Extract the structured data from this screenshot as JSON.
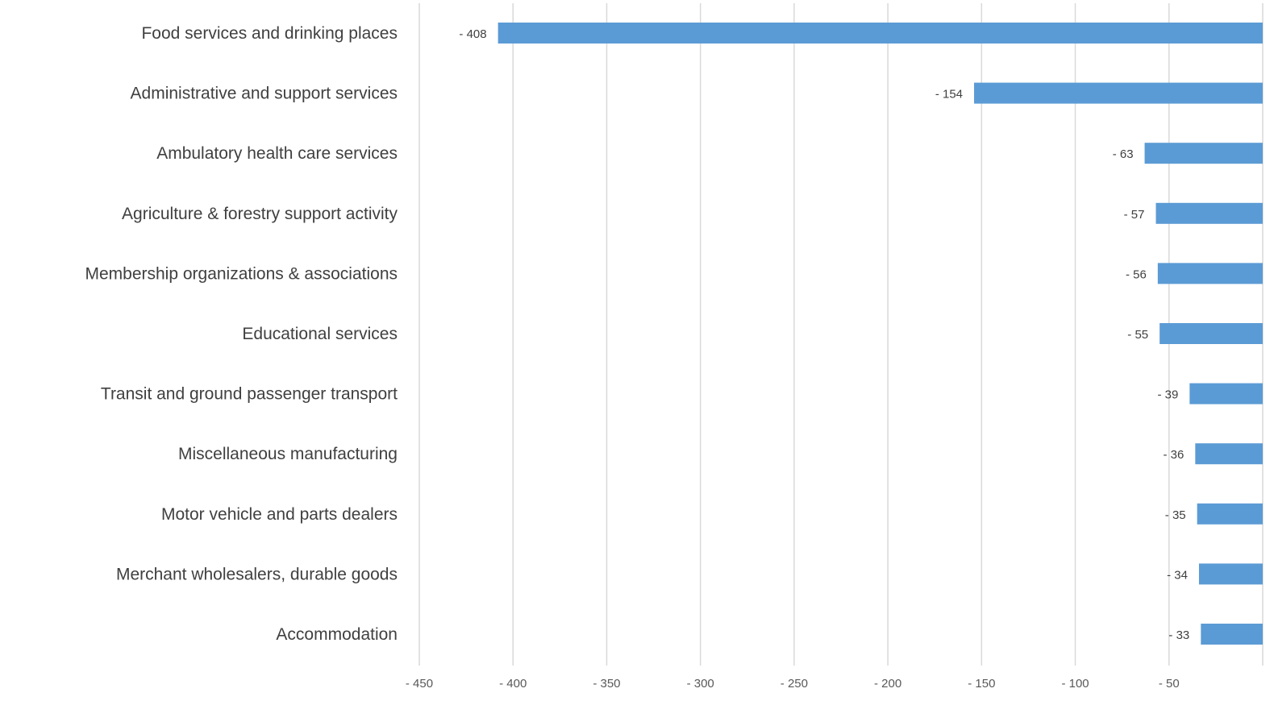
{
  "chart_data": {
    "type": "bar",
    "orientation": "horizontal",
    "title": "",
    "xlabel": "",
    "ylabel": "",
    "categories": [
      "Food services and drinking places",
      "Administrative and support services",
      "Ambulatory health care services",
      "Agriculture & forestry support activity",
      "Membership organizations & associations",
      "Educational services",
      "Transit and ground passenger transport",
      "Miscellaneous manufacturing",
      "Motor vehicle and parts dealers",
      "Merchant wholesalers, durable goods",
      "Accommodation"
    ],
    "values": [
      -408,
      -154,
      -63,
      -57,
      -56,
      -55,
      -39,
      -36,
      -35,
      -34,
      -33
    ],
    "data_labels": [
      "- 408",
      "- 154",
      "- 63",
      "- 57",
      "- 56",
      "- 55",
      "- 39",
      "- 36",
      "- 35",
      "- 34",
      "- 33"
    ],
    "xlim": [
      -450,
      0
    ],
    "x_ticks": [
      -450,
      -400,
      -350,
      -300,
      -250,
      -200,
      -150,
      -100,
      -50
    ],
    "x_tick_labels": [
      "- 450",
      "- 400",
      "- 350",
      "- 300",
      "- 250",
      "- 200",
      "- 150",
      "- 100",
      "- 50"
    ],
    "grid": true,
    "legend": "none",
    "bar_color": "#5b9bd5",
    "grid_color": "#d9d9d9"
  }
}
